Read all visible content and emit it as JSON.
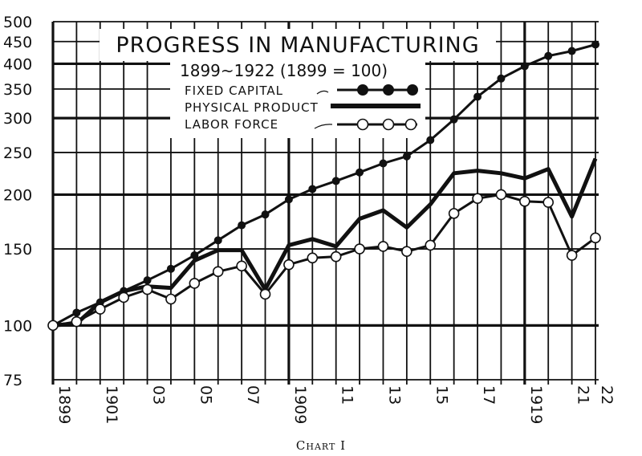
{
  "chart_data": {
    "type": "line",
    "title": "PROGRESS IN MANUFACTURING",
    "subtitle": "1899~1922 (1899 = 100)",
    "y_scale": "log",
    "ylim": [
      75,
      500
    ],
    "y_ticks": [
      75,
      100,
      150,
      200,
      250,
      300,
      350,
      400,
      450,
      500
    ],
    "x": [
      1899,
      1900,
      1901,
      1902,
      1903,
      1904,
      1905,
      1906,
      1907,
      1908,
      1909,
      1910,
      1911,
      1912,
      1913,
      1914,
      1915,
      1916,
      1917,
      1918,
      1919,
      1920,
      1921,
      1922
    ],
    "x_tick_labels": [
      {
        "x": 1899,
        "label": "1899"
      },
      {
        "x": 1901,
        "label": "1901"
      },
      {
        "x": 1903,
        "label": "03"
      },
      {
        "x": 1905,
        "label": "05"
      },
      {
        "x": 1907,
        "label": "07"
      },
      {
        "x": 1909,
        "label": "1909"
      },
      {
        "x": 1911,
        "label": "11"
      },
      {
        "x": 1913,
        "label": "13"
      },
      {
        "x": 1915,
        "label": "15"
      },
      {
        "x": 1917,
        "label": "17"
      },
      {
        "x": 1919,
        "label": "1919"
      },
      {
        "x": 1921,
        "label": "21"
      },
      {
        "x": 1922,
        "label": "22"
      }
    ],
    "series": [
      {
        "name": "FIXED CAPITAL",
        "marker": "filled-circle",
        "values": [
          100,
          107,
          113,
          120,
          127,
          135,
          145,
          157,
          170,
          180,
          195,
          206,
          215,
          225,
          236,
          245,
          267,
          298,
          336,
          370,
          395,
          417,
          428,
          443
        ]
      },
      {
        "name": "PHYSICAL PRODUCT",
        "marker": "none",
        "values": [
          100,
          101,
          113,
          120,
          123,
          122,
          141,
          149,
          149,
          121,
          153,
          158,
          152,
          176,
          184,
          168,
          190,
          224,
          227,
          224,
          218,
          229,
          178,
          242
        ]
      },
      {
        "name": "LABOR FORCE",
        "marker": "open-circle",
        "values": [
          100,
          102,
          109,
          116,
          121,
          115,
          125,
          133,
          137,
          118,
          138,
          143,
          144,
          150,
          152,
          148,
          153,
          181,
          196,
          200,
          193,
          192,
          145,
          159
        ]
      }
    ]
  },
  "caption": "Chart I",
  "colors": {
    "ink": "#111111",
    "background": "#ffffff"
  }
}
